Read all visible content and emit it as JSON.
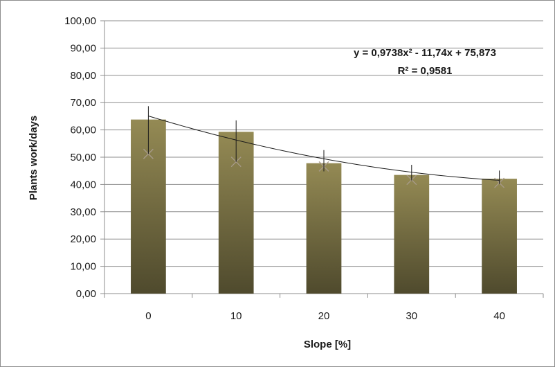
{
  "chart_data": {
    "type": "bar",
    "title": "",
    "xlabel": "Slope [%]",
    "ylabel": "Plants work/days",
    "categories": [
      "0",
      "10",
      "20",
      "30",
      "40"
    ],
    "values": [
      63.8,
      59.3,
      47.8,
      43.5,
      42.1
    ],
    "error_bars": [
      {
        "low": 51.2,
        "high": 68.7
      },
      {
        "low": 48.3,
        "high": 63.5
      },
      {
        "low": 44.8,
        "high": 52.6
      },
      {
        "low": 41.5,
        "high": 47.2
      },
      {
        "low": 40.2,
        "high": 45.1
      }
    ],
    "markers": [
      51.2,
      48.3,
      46.6,
      41.7,
      40.6
    ],
    "trendline": {
      "a": 0.9738,
      "b": -11.74,
      "c": 75.873,
      "x_index_start": 1
    },
    "ylim": [
      0,
      100
    ],
    "yticks": [
      "0,00",
      "10,00",
      "20,00",
      "30,00",
      "40,00",
      "50,00",
      "60,00",
      "70,00",
      "80,00",
      "90,00",
      "100,00"
    ],
    "grid": true,
    "bar_color_top": "#948a54",
    "bar_color_bottom": "#4f4a2d",
    "grid_color": "#8c8c8c",
    "annotation": {
      "equation": "y = 0,9738x² - 11,74x + 75,873",
      "r2": "R² = 0,9581"
    }
  }
}
